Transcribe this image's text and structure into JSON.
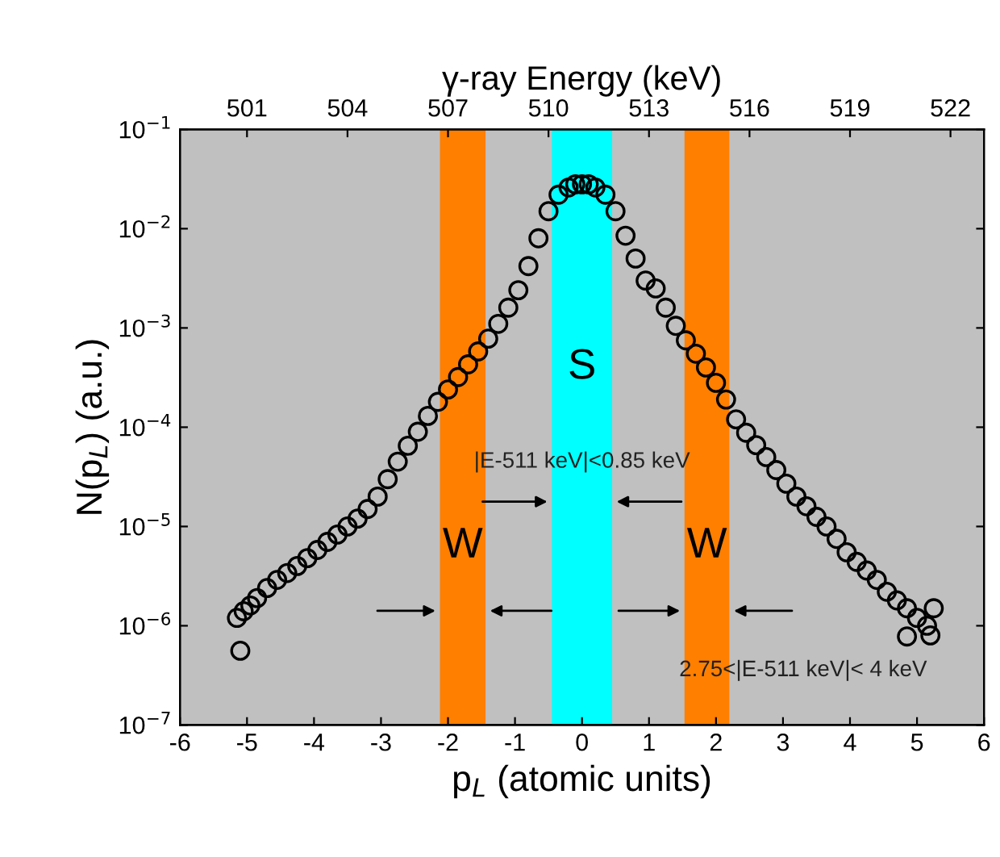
{
  "chart_data": {
    "type": "scatter",
    "x2label": "γ-ray Energy (keV)",
    "xlabel": "p$_{L}$ (atomic units)",
    "ylabel": "N(p$_{L}$) (a.u.)",
    "log": "y",
    "xlim": [
      -6,
      6
    ],
    "xticks": [
      -6,
      -5,
      -4,
      -3,
      -2,
      -1,
      0,
      1,
      2,
      3,
      4,
      5,
      6
    ],
    "x2lim": [
      499,
      523
    ],
    "x2ticks": [
      501,
      504,
      507,
      510,
      513,
      516,
      519,
      522
    ],
    "ylim": [
      1e-07,
      0.1
    ],
    "yticks": [
      {
        "value": 1e-07,
        "label": "10$^{−7}$"
      },
      {
        "value": 1e-06,
        "label": "10$^{−6}$"
      },
      {
        "value": 1e-05,
        "label": "10$^{−5}$"
      },
      {
        "value": 0.0001,
        "label": "10$^{−4}$"
      },
      {
        "value": 0.001,
        "label": "10$^{−3}$"
      },
      {
        "value": 0.01,
        "label": "10$^{−2}$"
      },
      {
        "value": 0.1,
        "label": "10$^{−1}$"
      }
    ],
    "grid": false,
    "marker": "circle",
    "series": [
      {
        "color": "#000000",
        "x": [
          -5.15,
          -5.1,
          -5.05,
          -4.95,
          -4.85,
          -4.7,
          -4.55,
          -4.4,
          -4.25,
          -4.1,
          -3.95,
          -3.8,
          -3.65,
          -3.5,
          -3.35,
          -3.2,
          -3.05,
          -2.9,
          -2.75,
          -2.6,
          -2.45,
          -2.3,
          -2.15,
          -2.0,
          -1.85,
          -1.7,
          -1.55,
          -1.4,
          -1.25,
          -1.1,
          -0.95,
          -0.8,
          -0.65,
          -0.5,
          -0.35,
          -0.2,
          -0.1,
          0,
          0.1,
          0.2,
          0.35,
          0.5,
          0.65,
          0.8,
          0.95,
          1.1,
          1.25,
          1.4,
          1.55,
          1.7,
          1.85,
          2.0,
          2.15,
          2.3,
          2.45,
          2.6,
          2.75,
          2.9,
          3.05,
          3.2,
          3.35,
          3.5,
          3.65,
          3.8,
          3.95,
          4.1,
          4.25,
          4.4,
          4.55,
          4.7,
          4.85,
          4.85,
          5.0,
          5.15,
          5.2,
          5.25
        ],
        "values": [
          1.2e-06,
          5.6e-07,
          1.4e-06,
          1.6e-06,
          1.9e-06,
          2.4e-06,
          2.9e-06,
          3.4e-06,
          4e-06,
          4.8e-06,
          5.8e-06,
          7e-06,
          8.3e-06,
          1e-05,
          1.2e-05,
          1.5e-05,
          2e-05,
          3e-05,
          4.5e-05,
          6.5e-05,
          9e-05,
          0.00013,
          0.00018,
          0.00024,
          0.00032,
          0.00043,
          0.00058,
          0.00078,
          0.0011,
          0.0016,
          0.0024,
          0.0042,
          0.008,
          0.015,
          0.022,
          0.026,
          0.028,
          0.028,
          0.028,
          0.026,
          0.022,
          0.015,
          0.0085,
          0.005,
          0.003,
          0.0025,
          0.0016,
          0.00105,
          0.00075,
          0.00055,
          0.0004,
          0.00028,
          0.00019,
          0.00012,
          8.8e-05,
          6.6e-05,
          5e-05,
          3.7e-05,
          2.7e-05,
          2e-05,
          1.6e-05,
          1.25e-05,
          1e-05,
          7.5e-06,
          5.5e-06,
          4.4e-06,
          3.6e-06,
          2.9e-06,
          2.2e-06,
          1.8e-06,
          1.5e-06,
          7.8e-07,
          1.2e-06,
          1e-06,
          8e-07,
          1.5e-06
        ]
      }
    ],
    "bands": [
      {
        "axis": "x",
        "from": -0.45,
        "to": 0.45,
        "label": "S",
        "color": "#00ffff"
      },
      {
        "axis": "x",
        "from": -2.12,
        "to": -1.44,
        "label": "W",
        "color": "#ff7f00"
      },
      {
        "axis": "x",
        "from": 1.53,
        "to": 2.2,
        "label": "W",
        "color": "#ff7f00"
      }
    ],
    "annotations": [
      "|E-511 keV|<0.85 keV",
      "2.75<|E-511 keV|< 4 keV"
    ]
  }
}
